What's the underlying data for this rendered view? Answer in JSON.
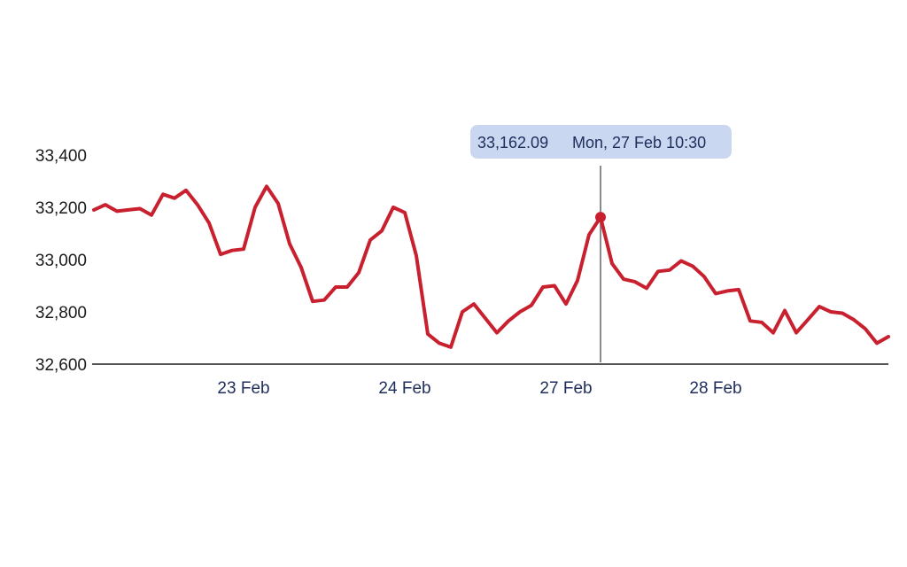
{
  "chart_data": {
    "type": "line",
    "title": "",
    "xlabel": "",
    "ylabel": "",
    "ylim": [
      32600,
      33400
    ],
    "yticks": [
      "32,600",
      "32,800",
      "33,000",
      "33,200",
      "33,400"
    ],
    "xticks": [
      "23 Feb",
      "24 Feb",
      "27 Feb",
      "28 Feb"
    ],
    "grid": false,
    "colors": {
      "line": "#c8202e",
      "tooltip_bg": "#c9d7f1",
      "tooltip_text": "#1f2d5c",
      "crosshair": "#8a8a8a",
      "axis": "#555555"
    },
    "series": [
      {
        "values": [
          33190,
          33210,
          33185,
          33190,
          33195,
          33170,
          33250,
          33235,
          33265,
          33210,
          33140,
          33020,
          33035,
          33040,
          33200,
          33280,
          33215,
          33060,
          32970,
          32840,
          32845,
          32895,
          32895,
          32950,
          33075,
          33110,
          33200,
          33180,
          33015,
          32715,
          32680,
          32665,
          32800,
          32830,
          32775,
          32720,
          32765,
          32800,
          32825,
          32895,
          32900,
          32830,
          32920,
          33095,
          33162.09,
          32985,
          32925,
          32915,
          32890,
          32955,
          32960,
          32995,
          32975,
          32935,
          32870,
          32880,
          32885,
          32765,
          32760,
          32720,
          32805,
          32720,
          32770,
          32820,
          32800,
          32795,
          32770,
          32735,
          32680,
          32705
        ]
      }
    ],
    "tooltip": {
      "value": "33,162.09",
      "time": "Mon, 27 Feb 10:30",
      "index": 44
    }
  }
}
